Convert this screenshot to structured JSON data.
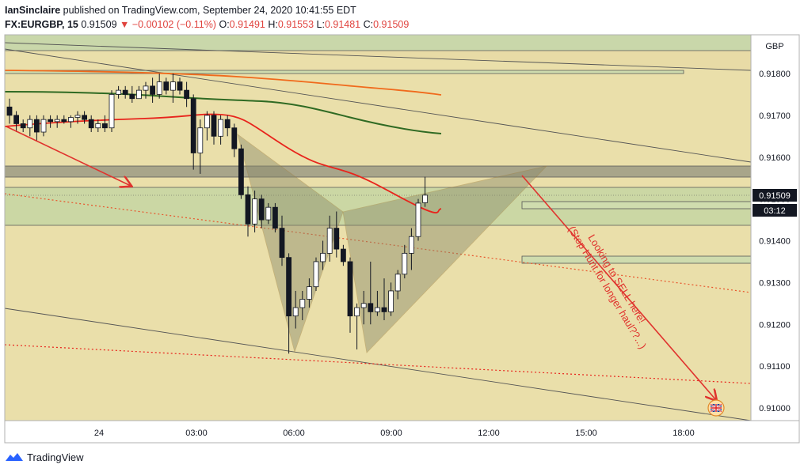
{
  "header": {
    "user": "IanSinclaire",
    "published_text": "published on TradingView.com, September 24, 2020 10:41:55 EDT",
    "symbol": "FX:EURGBP, 15",
    "last": "0.91509",
    "change": "−0.00102 (−0.11%)",
    "o_label": "O:",
    "o_value": "0.91491",
    "h_label": "H:",
    "h_value": "0.91553",
    "l_label": "L:",
    "l_value": "0.91481",
    "c_label": "C:",
    "c_value": "0.91509"
  },
  "footer": {
    "brand": "TradingView",
    "logo_icon": "tradingview-logo-icon"
  },
  "colors": {
    "background": "#e8dba6",
    "candle_up": "#ffffff",
    "candle_down": "#131722",
    "ma_red": "#e8241c",
    "ma_orange": "#f06a1c",
    "ma_green": "#2f6a23",
    "annotation": "#e0332e",
    "pattern_fill": "#8a8a6a"
  },
  "chart_data": {
    "type": "candlestick",
    "currency_label": "GBP",
    "y_ticks": [
      "0.91800",
      "0.91700",
      "0.91600",
      "0.91500",
      "0.91400",
      "0.91300",
      "0.91200",
      "0.91100",
      "0.91000"
    ],
    "ylim": [
      0.9098,
      0.919
    ],
    "x_ticks": [
      "24",
      "03:00",
      "06:00",
      "09:00",
      "12:00",
      "15:00",
      "18:00"
    ],
    "last_price_label": "0.91509",
    "countdown_label": "03:12",
    "annotation_text_line1": "Looking to SELL here!",
    "annotation_text_line2": "(Stop Hunt for longer haul??...)",
    "flag_icon": "uk-flag-icon",
    "candles": [
      {
        "o": 0.9172,
        "h": 0.9174,
        "l": 0.9168,
        "c": 0.917
      },
      {
        "o": 0.917,
        "h": 0.9171,
        "l": 0.9166,
        "c": 0.9168
      },
      {
        "o": 0.9168,
        "h": 0.9169,
        "l": 0.9166,
        "c": 0.9167
      },
      {
        "o": 0.9167,
        "h": 0.917,
        "l": 0.9165,
        "c": 0.9169
      },
      {
        "o": 0.9169,
        "h": 0.917,
        "l": 0.9164,
        "c": 0.9166
      },
      {
        "o": 0.9166,
        "h": 0.917,
        "l": 0.9165,
        "c": 0.9169
      },
      {
        "o": 0.9169,
        "h": 0.917,
        "l": 0.9167,
        "c": 0.91685
      },
      {
        "o": 0.91685,
        "h": 0.917,
        "l": 0.9167,
        "c": 0.9169
      },
      {
        "o": 0.9169,
        "h": 0.917,
        "l": 0.9168,
        "c": 0.91685
      },
      {
        "o": 0.91685,
        "h": 0.917,
        "l": 0.9167,
        "c": 0.91695
      },
      {
        "o": 0.91695,
        "h": 0.9171,
        "l": 0.9168,
        "c": 0.917
      },
      {
        "o": 0.917,
        "h": 0.9171,
        "l": 0.9168,
        "c": 0.9169
      },
      {
        "o": 0.9169,
        "h": 0.917,
        "l": 0.9166,
        "c": 0.9167
      },
      {
        "o": 0.9167,
        "h": 0.9169,
        "l": 0.9166,
        "c": 0.9168
      },
      {
        "o": 0.9168,
        "h": 0.917,
        "l": 0.9166,
        "c": 0.9167
      },
      {
        "o": 0.9167,
        "h": 0.9176,
        "l": 0.9166,
        "c": 0.9175
      },
      {
        "o": 0.9175,
        "h": 0.9177,
        "l": 0.9174,
        "c": 0.9176
      },
      {
        "o": 0.9176,
        "h": 0.9177,
        "l": 0.9174,
        "c": 0.9175
      },
      {
        "o": 0.9175,
        "h": 0.9177,
        "l": 0.9173,
        "c": 0.9174
      },
      {
        "o": 0.9174,
        "h": 0.9177,
        "l": 0.9174,
        "c": 0.9176
      },
      {
        "o": 0.9176,
        "h": 0.9178,
        "l": 0.9174,
        "c": 0.9177
      },
      {
        "o": 0.9177,
        "h": 0.9179,
        "l": 0.9173,
        "c": 0.9175
      },
      {
        "o": 0.9175,
        "h": 0.918,
        "l": 0.9174,
        "c": 0.9178
      },
      {
        "o": 0.9178,
        "h": 0.9179,
        "l": 0.9175,
        "c": 0.9176
      },
      {
        "o": 0.9176,
        "h": 0.918,
        "l": 0.9173,
        "c": 0.9178
      },
      {
        "o": 0.9178,
        "h": 0.9179,
        "l": 0.9175,
        "c": 0.9176
      },
      {
        "o": 0.9176,
        "h": 0.9178,
        "l": 0.9172,
        "c": 0.9174
      },
      {
        "o": 0.9174,
        "h": 0.9175,
        "l": 0.9157,
        "c": 0.9161
      },
      {
        "o": 0.9161,
        "h": 0.9169,
        "l": 0.9156,
        "c": 0.9167
      },
      {
        "o": 0.9167,
        "h": 0.9171,
        "l": 0.9164,
        "c": 0.917
      },
      {
        "o": 0.917,
        "h": 0.9171,
        "l": 0.9163,
        "c": 0.9165
      },
      {
        "o": 0.9165,
        "h": 0.917,
        "l": 0.9163,
        "c": 0.9169
      },
      {
        "o": 0.9169,
        "h": 0.917,
        "l": 0.9165,
        "c": 0.9167
      },
      {
        "o": 0.9167,
        "h": 0.9168,
        "l": 0.916,
        "c": 0.9162
      },
      {
        "o": 0.9162,
        "h": 0.9163,
        "l": 0.915,
        "c": 0.9151
      },
      {
        "o": 0.9151,
        "h": 0.9153,
        "l": 0.9141,
        "c": 0.9144
      },
      {
        "o": 0.9144,
        "h": 0.9152,
        "l": 0.9142,
        "c": 0.915
      },
      {
        "o": 0.915,
        "h": 0.9151,
        "l": 0.9143,
        "c": 0.9145
      },
      {
        "o": 0.9145,
        "h": 0.9149,
        "l": 0.9144,
        "c": 0.9148
      },
      {
        "o": 0.9148,
        "h": 0.9149,
        "l": 0.9142,
        "c": 0.9143
      },
      {
        "o": 0.9143,
        "h": 0.9146,
        "l": 0.9134,
        "c": 0.9136
      },
      {
        "o": 0.9136,
        "h": 0.9137,
        "l": 0.9113,
        "c": 0.9122
      },
      {
        "o": 0.9122,
        "h": 0.9128,
        "l": 0.9119,
        "c": 0.9124
      },
      {
        "o": 0.9124,
        "h": 0.9128,
        "l": 0.9121,
        "c": 0.9126
      },
      {
        "o": 0.9126,
        "h": 0.9131,
        "l": 0.9124,
        "c": 0.9129
      },
      {
        "o": 0.9129,
        "h": 0.9136,
        "l": 0.9128,
        "c": 0.9135
      },
      {
        "o": 0.9135,
        "h": 0.914,
        "l": 0.9133,
        "c": 0.9137
      },
      {
        "o": 0.9137,
        "h": 0.9146,
        "l": 0.9135,
        "c": 0.9143
      },
      {
        "o": 0.9143,
        "h": 0.9147,
        "l": 0.9136,
        "c": 0.9138
      },
      {
        "o": 0.9138,
        "h": 0.9139,
        "l": 0.9134,
        "c": 0.9135
      },
      {
        "o": 0.9135,
        "h": 0.9136,
        "l": 0.9118,
        "c": 0.9122
      },
      {
        "o": 0.9122,
        "h": 0.9125,
        "l": 0.9114,
        "c": 0.9124
      },
      {
        "o": 0.9124,
        "h": 0.9128,
        "l": 0.912,
        "c": 0.9125
      },
      {
        "o": 0.9125,
        "h": 0.9135,
        "l": 0.912,
        "c": 0.9123
      },
      {
        "o": 0.9123,
        "h": 0.9128,
        "l": 0.9122,
        "c": 0.9124
      },
      {
        "o": 0.9124,
        "h": 0.9131,
        "l": 0.9121,
        "c": 0.9123
      },
      {
        "o": 0.9123,
        "h": 0.913,
        "l": 0.9122,
        "c": 0.9128
      },
      {
        "o": 0.9128,
        "h": 0.9133,
        "l": 0.9126,
        "c": 0.9132
      },
      {
        "o": 0.9132,
        "h": 0.9139,
        "l": 0.9131,
        "c": 0.9137
      },
      {
        "o": 0.9137,
        "h": 0.9143,
        "l": 0.9133,
        "c": 0.9141
      },
      {
        "o": 0.9141,
        "h": 0.915,
        "l": 0.914,
        "c": 0.9149
      },
      {
        "o": 0.91491,
        "h": 0.91553,
        "l": 0.91481,
        "c": 0.91509
      }
    ]
  }
}
